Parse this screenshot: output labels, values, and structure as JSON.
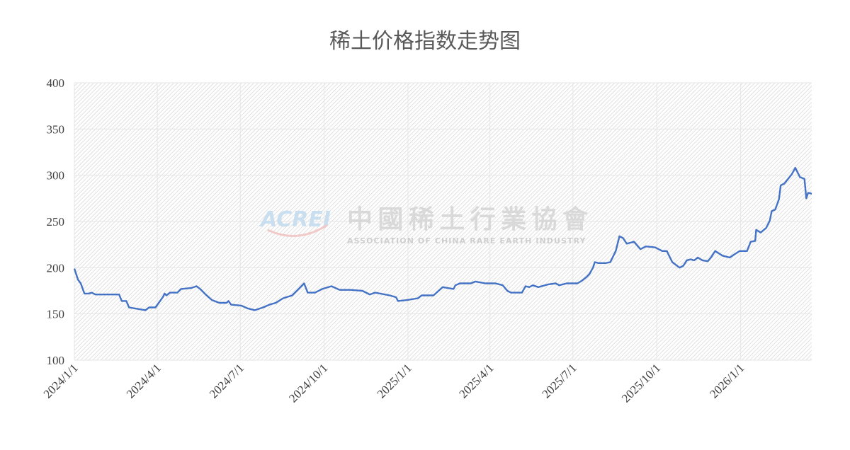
{
  "chart_data": {
    "type": "line",
    "title": "稀土价格指数走势图",
    "xlabel": "",
    "ylabel": "",
    "xlim": [
      "2024-01-01",
      "2026-03-20"
    ],
    "ylim": [
      100,
      400
    ],
    "yticks": [
      100,
      150,
      200,
      250,
      300,
      350,
      400
    ],
    "xticks": [
      "2024-01-01",
      "2024-04-01",
      "2024-07-01",
      "2024-10-01",
      "2025-01-01",
      "2025-04-01",
      "2025-07-01",
      "2025-10-01",
      "2026-01-01"
    ],
    "xtick_labels": [
      "2024/1/1",
      "2024/4/1",
      "2024/7/1",
      "2024/10/1",
      "2025/1/1",
      "2025/4/1",
      "2025/7/1",
      "2025/10/1",
      "2026/1/1"
    ],
    "grid": true,
    "background": "diagonal hatch",
    "line_color": "#4472c4",
    "watermark": {
      "logo": "ACREI",
      "cn": "中國稀土行業協會",
      "en": "ASSOCIATION OF CHINA RARE EARTH INDUSTRY"
    },
    "points": [
      [
        "2024-01-01",
        199
      ],
      [
        "2024-01-05",
        187
      ],
      [
        "2024-01-08",
        183
      ],
      [
        "2024-01-12",
        172
      ],
      [
        "2024-01-17",
        172
      ],
      [
        "2024-01-20",
        173
      ],
      [
        "2024-01-24",
        171
      ],
      [
        "2024-02-19",
        171
      ],
      [
        "2024-02-22",
        164
      ],
      [
        "2024-02-27",
        164
      ],
      [
        "2024-03-01",
        157
      ],
      [
        "2024-03-07",
        156
      ],
      [
        "2024-03-19",
        154
      ],
      [
        "2024-03-23",
        157
      ],
      [
        "2024-03-30",
        157
      ],
      [
        "2024-04-07",
        168
      ],
      [
        "2024-04-09",
        172
      ],
      [
        "2024-04-11",
        170
      ],
      [
        "2024-04-15",
        173
      ],
      [
        "2024-04-23",
        173
      ],
      [
        "2024-04-27",
        177
      ],
      [
        "2024-05-08",
        178
      ],
      [
        "2024-05-14",
        180
      ],
      [
        "2024-05-18",
        177
      ],
      [
        "2024-05-24",
        171
      ],
      [
        "2024-05-31",
        165
      ],
      [
        "2024-06-08",
        162
      ],
      [
        "2024-06-16",
        162
      ],
      [
        "2024-06-18",
        164
      ],
      [
        "2024-06-21",
        160
      ],
      [
        "2024-07-02",
        159
      ],
      [
        "2024-07-09",
        156
      ],
      [
        "2024-07-17",
        154
      ],
      [
        "2024-07-26",
        157
      ],
      [
        "2024-08-02",
        160
      ],
      [
        "2024-08-09",
        162
      ],
      [
        "2024-08-17",
        167
      ],
      [
        "2024-08-27",
        170
      ],
      [
        "2024-09-02",
        176
      ],
      [
        "2024-09-09",
        183
      ],
      [
        "2024-09-13",
        173
      ],
      [
        "2024-09-21",
        173
      ],
      [
        "2024-09-29",
        177
      ],
      [
        "2024-10-09",
        180
      ],
      [
        "2024-10-18",
        176
      ],
      [
        "2024-10-30",
        176
      ],
      [
        "2024-11-12",
        175
      ],
      [
        "2024-11-20",
        171
      ],
      [
        "2024-11-26",
        173
      ],
      [
        "2024-12-12",
        170
      ],
      [
        "2024-12-19",
        168
      ],
      [
        "2024-12-21",
        164
      ],
      [
        "2024-12-31",
        165
      ],
      [
        "2025-01-12",
        167
      ],
      [
        "2025-01-16",
        170
      ],
      [
        "2025-01-29",
        170
      ],
      [
        "2025-02-08",
        179
      ],
      [
        "2025-02-20",
        177
      ],
      [
        "2025-02-22",
        181
      ],
      [
        "2025-02-27",
        183
      ],
      [
        "2025-03-11",
        183
      ],
      [
        "2025-03-16",
        185
      ],
      [
        "2025-03-27",
        183
      ],
      [
        "2025-04-07",
        183
      ],
      [
        "2025-04-15",
        181
      ],
      [
        "2025-04-20",
        175
      ],
      [
        "2025-04-24",
        173
      ],
      [
        "2025-05-06",
        173
      ],
      [
        "2025-05-10",
        180
      ],
      [
        "2025-05-14",
        179
      ],
      [
        "2025-05-18",
        181
      ],
      [
        "2025-05-24",
        179
      ],
      [
        "2025-06-04",
        182
      ],
      [
        "2025-06-12",
        183
      ],
      [
        "2025-06-16",
        181
      ],
      [
        "2025-06-24",
        183
      ],
      [
        "2025-07-06",
        183
      ],
      [
        "2025-07-11",
        186
      ],
      [
        "2025-07-16",
        190
      ],
      [
        "2025-07-19",
        193
      ],
      [
        "2025-07-23",
        200
      ],
      [
        "2025-07-25",
        206
      ],
      [
        "2025-07-29",
        205
      ],
      [
        "2025-08-06",
        205
      ],
      [
        "2025-08-11",
        206
      ],
      [
        "2025-08-17",
        218
      ],
      [
        "2025-08-21",
        234
      ],
      [
        "2025-08-25",
        232
      ],
      [
        "2025-08-29",
        226
      ],
      [
        "2025-09-06",
        228
      ],
      [
        "2025-09-13",
        220
      ],
      [
        "2025-09-19",
        223
      ],
      [
        "2025-09-29",
        222
      ],
      [
        "2025-10-07",
        218
      ],
      [
        "2025-10-12",
        218
      ],
      [
        "2025-10-18",
        206
      ],
      [
        "2025-10-26",
        200
      ],
      [
        "2025-10-30",
        202
      ],
      [
        "2025-11-03",
        208
      ],
      [
        "2025-11-07",
        209
      ],
      [
        "2025-11-11",
        208
      ],
      [
        "2025-11-15",
        211
      ],
      [
        "2025-11-20",
        208
      ],
      [
        "2025-11-26",
        207
      ],
      [
        "2025-11-30",
        212
      ],
      [
        "2025-12-04",
        218
      ],
      [
        "2025-12-12",
        213
      ],
      [
        "2025-12-20",
        211
      ],
      [
        "2025-12-23",
        213
      ],
      [
        "2025-12-31",
        218
      ],
      [
        "2026-01-08",
        218
      ],
      [
        "2026-01-12",
        228
      ],
      [
        "2026-01-17",
        229
      ],
      [
        "2026-01-18",
        241
      ],
      [
        "2026-01-23",
        238
      ],
      [
        "2026-01-29",
        243
      ],
      [
        "2026-02-02",
        251
      ],
      [
        "2026-02-04",
        261
      ],
      [
        "2026-02-08",
        263
      ],
      [
        "2026-02-12",
        274
      ],
      [
        "2026-02-14",
        289
      ],
      [
        "2026-02-18",
        291
      ],
      [
        "2026-02-26",
        301
      ],
      [
        "2026-03-02",
        308
      ],
      [
        "2026-03-07",
        298
      ],
      [
        "2026-03-12",
        296
      ],
      [
        "2026-03-14",
        275
      ],
      [
        "2026-03-16",
        281
      ],
      [
        "2026-03-20",
        280
      ]
    ]
  }
}
